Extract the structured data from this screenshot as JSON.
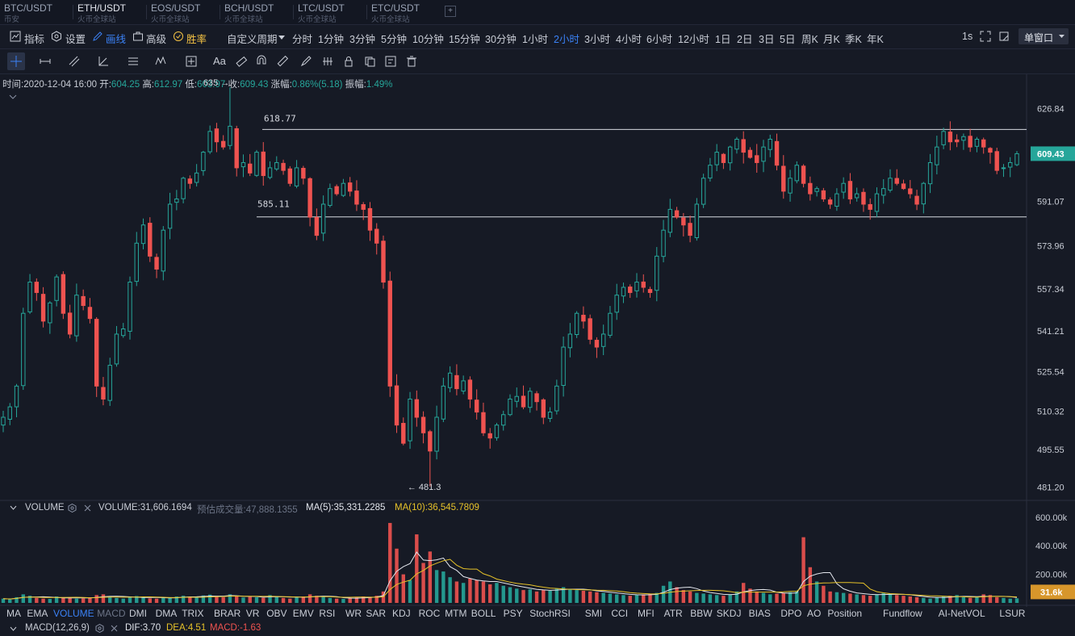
{
  "tabs": [
    {
      "pair": "BTC/USDT",
      "sub": "币安",
      "active": false
    },
    {
      "pair": "ETH/USDT",
      "sub": "火币全球站",
      "active": true
    },
    {
      "pair": "EOS/USDT",
      "sub": "火币全球站",
      "active": false
    },
    {
      "pair": "BCH/USDT",
      "sub": "火币全球站",
      "active": false
    },
    {
      "pair": "LTC/USDT",
      "sub": "火币全球站",
      "active": false
    },
    {
      "pair": "ETC/USDT",
      "sub": "火币全球站",
      "active": false
    }
  ],
  "toolbar": {
    "indicators": "指标",
    "settings": "设置",
    "draw": "画线",
    "advanced": "高级",
    "winrate": "胜率",
    "custom_period": "自定义周期",
    "periods": [
      "分时",
      "1分钟",
      "3分钟",
      "5分钟",
      "10分钟",
      "15分钟",
      "30分钟",
      "1小时",
      "2小时",
      "3小时",
      "4小时",
      "6小时",
      "12小时",
      "1日",
      "2日",
      "3日",
      "5日",
      "周K",
      "月K",
      "季K",
      "年K"
    ],
    "active_period": "2小时",
    "refresh": "1s",
    "window_mode": "单窗口"
  },
  "info": {
    "time_label": "时间:",
    "time": "2020-12-04 16:00",
    "open_label": "开:",
    "open": "604.25",
    "high_label": "高:",
    "high": "612.97",
    "low_label": "低:",
    "low": "603.97",
    "close_label": "收:",
    "close": "609.43",
    "change_label": "涨幅:",
    "change": "0.86%(5.18)",
    "amp_label": "振幅:",
    "amp": "1.49%"
  },
  "annotations": {
    "line_top": "618.77",
    "line_bottom": "585.11",
    "high_mark": "635 →",
    "low_mark": "← 481.3"
  },
  "price_axis": [
    "626.84",
    "609.43",
    "591.07",
    "573.96",
    "557.34",
    "541.21",
    "525.54",
    "510.32",
    "495.55",
    "481.20"
  ],
  "volume": {
    "title": "VOLUME",
    "value_label": "VOLUME:",
    "value": "31,606.1694",
    "est_label": "预估成交量:",
    "est": "47,888.1355",
    "ma5_label": "MA(5):",
    "ma5": "35,331.2285",
    "ma10_label": "MA(10):",
    "ma10": "36,545.7809",
    "axis": [
      "600.00k",
      "400.00k",
      "200.00k"
    ],
    "current": "31.6k"
  },
  "indicator_tabs": [
    "MA",
    "EMA",
    "VOLUME",
    "MACD",
    "DMI",
    "DMA",
    "TRIX",
    "BRAR",
    "VR",
    "OBV",
    "EMV",
    "RSI",
    "WR",
    "SAR",
    "KDJ",
    "ROC",
    "MTM",
    "BOLL",
    "PSY",
    "StochRSI",
    "SMI",
    "CCI",
    "MFI",
    "ATR",
    "BBW",
    "SKDJ",
    "BIAS",
    "DPO",
    "AO",
    "Position",
    "Fundflow",
    "AI-NetVOL",
    "LSUR"
  ],
  "active_indicator": "VOLUME",
  "macd": {
    "title": "MACD(12,26,9)",
    "dif": "DIF:3.70",
    "dea": "DEA:4.51",
    "macd": "MACD:-1.63"
  },
  "colors": {
    "up": "#26a69a",
    "down": "#ef5350",
    "accent": "#3b82f6",
    "ma10": "#e6c229",
    "price_badge": "#26a69a",
    "vol_badge": "#d7962b"
  },
  "chart_data": {
    "type": "candlestick",
    "pair": "ETH/USDT",
    "interval": "2小时",
    "ylim": [
      476,
      640
    ],
    "horizontal_lines": [
      618.77,
      585.11
    ],
    "high": 635,
    "low": 481.3,
    "last": 609.43,
    "path": [
      508,
      512,
      520,
      548,
      560,
      556,
      545,
      552,
      562,
      548,
      540,
      555,
      551,
      546,
      520,
      515,
      528,
      540,
      542,
      560,
      575,
      582,
      570,
      565,
      580,
      590,
      592,
      600,
      598,
      602,
      610,
      618,
      614,
      612,
      620,
      604,
      606,
      602,
      610,
      601,
      604,
      606,
      603,
      598,
      604,
      600,
      585,
      578,
      590,
      596,
      594,
      598,
      595,
      590,
      588,
      580,
      575,
      560,
      520,
      505,
      498,
      515,
      508,
      502,
      495,
      508,
      520,
      525,
      519,
      522,
      515,
      510,
      502,
      500,
      505,
      509,
      515,
      516,
      512,
      518,
      514,
      508,
      510,
      520,
      535,
      540,
      548,
      545,
      538,
      535,
      540,
      548,
      555,
      558,
      556,
      560,
      558,
      556,
      570,
      580,
      588,
      585,
      582,
      578,
      590,
      600,
      605,
      610,
      606,
      612,
      615,
      610,
      608,
      606,
      612,
      615,
      605,
      595,
      600,
      605,
      598,
      594,
      596,
      592,
      590,
      594,
      598,
      592,
      594,
      590,
      588,
      594,
      596,
      600,
      598,
      596,
      594,
      590,
      598,
      606,
      612,
      618,
      614,
      614,
      616,
      612,
      615,
      612,
      610,
      603,
      604,
      606,
      609.43
    ],
    "volume_k": [
      30,
      25,
      40,
      60,
      50,
      35,
      30,
      28,
      45,
      40,
      35,
      30,
      32,
      38,
      55,
      60,
      45,
      35,
      30,
      42,
      48,
      38,
      32,
      30,
      35,
      40,
      45,
      50,
      42,
      38,
      52,
      58,
      48,
      40,
      60,
      45,
      38,
      42,
      40,
      36,
      55,
      48,
      35,
      30,
      40,
      45,
      60,
      50,
      42,
      35,
      30,
      28,
      35,
      40,
      45,
      38,
      50,
      80,
      560,
      380,
      200,
      160,
      480,
      280,
      360,
      230,
      220,
      180,
      150,
      140,
      170,
      160,
      150,
      130,
      140,
      120,
      110,
      100,
      90,
      95,
      80,
      90,
      85,
      100,
      110,
      95,
      90,
      85,
      80,
      75,
      70,
      65,
      60,
      55,
      50,
      55,
      60,
      65,
      70,
      120,
      150,
      110,
      90,
      80,
      70,
      65,
      60,
      55,
      50,
      60,
      80,
      140,
      100,
      80,
      70,
      60,
      65,
      70,
      75,
      80,
      460,
      250,
      150,
      120,
      80,
      75,
      70,
      65,
      60,
      55,
      50,
      60,
      70,
      65,
      55,
      50,
      45,
      40,
      35,
      30,
      40,
      45,
      50,
      55,
      40,
      35,
      40,
      60,
      55,
      40,
      35,
      30,
      32
    ]
  }
}
